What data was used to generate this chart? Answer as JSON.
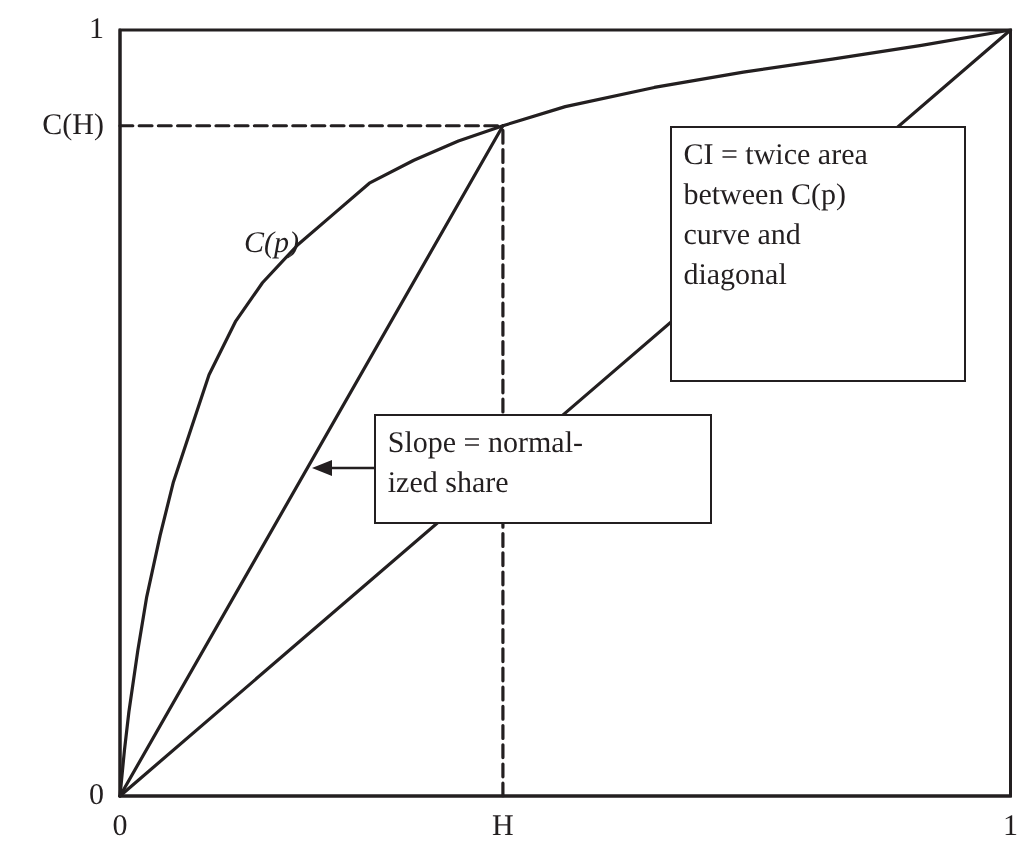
{
  "chart_data": {
    "type": "line",
    "xlim": [
      0,
      1
    ],
    "ylim": [
      0,
      1
    ],
    "xticks": [
      0,
      {
        "value": 0.43,
        "label": "H"
      },
      1
    ],
    "yticks": [
      0,
      {
        "value": 0.875,
        "label": "C(H)"
      },
      1
    ],
    "marker": "none",
    "series": [
      {
        "color": "#231f20",
        "x": [
          0,
          0.005,
          0.01,
          0.02,
          0.03,
          0.045,
          0.06,
          0.08,
          0.1,
          0.13,
          0.16,
          0.2,
          0.24,
          0.28,
          0.33,
          0.38,
          0.43,
          0.5,
          0.6,
          0.7,
          0.8,
          0.9,
          1
        ],
        "values": [
          0,
          0.06,
          0.11,
          0.19,
          0.26,
          0.34,
          0.41,
          0.48,
          0.55,
          0.62,
          0.67,
          0.72,
          0.76,
          0.8,
          0.83,
          0.855,
          0.875,
          0.9,
          0.925,
          0.945,
          0.962,
          0.98,
          1
        ]
      },
      {
        "color": "#231f20",
        "x": [
          0,
          1
        ],
        "values": [
          0,
          1
        ]
      },
      {
        "color": "#231f20",
        "x": [
          0,
          0.43
        ],
        "values": [
          0,
          0.875
        ]
      },
      {
        "color": "#231f20",
        "x": [
          0,
          0.43
        ],
        "values": [
          0.875,
          0.875
        ],
        "line_style": "dashed"
      },
      {
        "color": "#231f20",
        "x": [
          0.43,
          0.43
        ],
        "values": [
          0,
          0.875
        ],
        "line_style": "dashed"
      }
    ],
    "annotations": [
      "C(p)",
      "CI = twice area\nbetween C(p)\ncurve and\ndiagonal",
      "Slope = normal-\nized share"
    ]
  }
}
